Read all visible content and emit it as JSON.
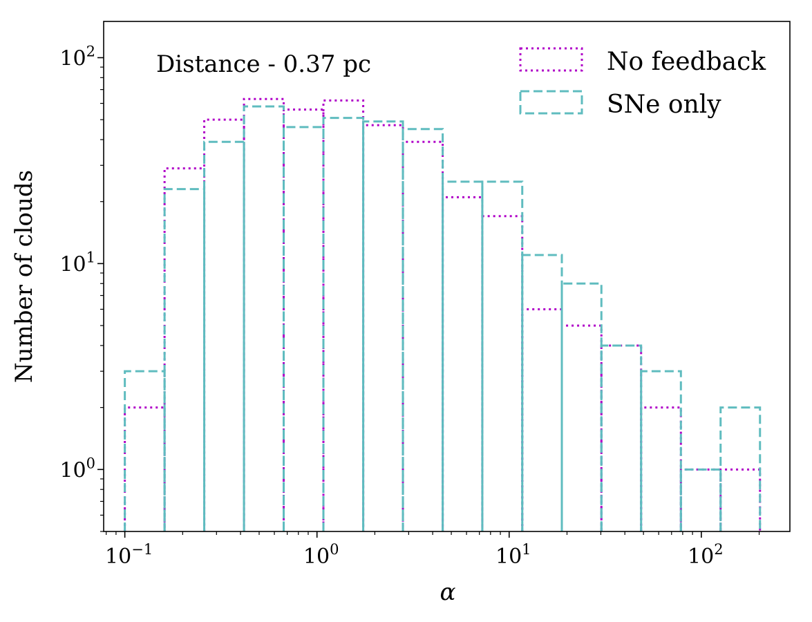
{
  "chart_data": {
    "type": "histogram",
    "annotation": "Distance - 0.37 pc",
    "xlabel": "α",
    "ylabel": "Number of clouds",
    "xscale": "log",
    "yscale": "log",
    "xlim": [
      0.0776,
      289
    ],
    "ylim": [
      0.5,
      150
    ],
    "xticks": [
      {
        "value": 0.1,
        "base": "10",
        "exp": "−1"
      },
      {
        "value": 1,
        "base": "10",
        "exp": "0"
      },
      {
        "value": 10,
        "base": "10",
        "exp": "1"
      },
      {
        "value": 100,
        "base": "10",
        "exp": "2"
      }
    ],
    "yticks": [
      {
        "value": 1,
        "base": "10",
        "exp": "0"
      },
      {
        "value": 10,
        "base": "10",
        "exp": "1"
      },
      {
        "value": 100,
        "base": "10",
        "exp": "2"
      }
    ],
    "bin_edges": [
      0.1,
      0.161,
      0.259,
      0.417,
      0.671,
      1.08,
      1.74,
      2.8,
      4.51,
      7.25,
      11.7,
      18.8,
      30.2,
      48.6,
      78.3,
      126,
      202
    ],
    "series": [
      {
        "name": "No feedback",
        "color": "#b000c8",
        "style": "dotted",
        "counts": [
          2,
          29,
          50,
          63,
          56,
          62,
          47,
          39,
          21,
          17,
          6,
          5,
          4,
          2,
          1,
          1
        ]
      },
      {
        "name": "SNe only",
        "color": "#5fbcbf",
        "style": "dashed",
        "counts": [
          3,
          23,
          39,
          58,
          46,
          51,
          49,
          45,
          25,
          25,
          11,
          8,
          4,
          3,
          1,
          2
        ]
      }
    ],
    "legend_position": "top-right"
  }
}
